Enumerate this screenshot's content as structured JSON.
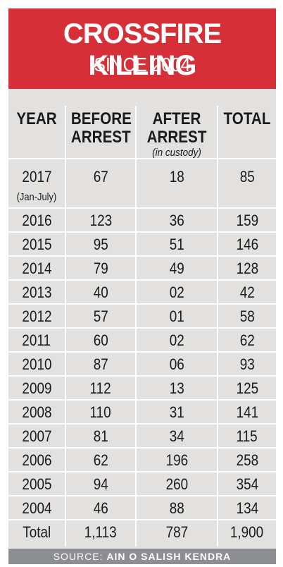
{
  "header": {
    "title": "CROSSFIRE KILLING",
    "subtitle": "SINCE 2004"
  },
  "columns": {
    "year": "YEAR",
    "before_l1": "BEFORE",
    "before_l2": "ARREST",
    "after_l1": "AFTER",
    "after_l2": "ARREST",
    "after_note": "(in custody)",
    "total": "TOTAL"
  },
  "rows": [
    {
      "year": "2017",
      "year_note": "(Jan-July)",
      "before": "67",
      "after": "18",
      "total": "85"
    },
    {
      "year": "2016",
      "before": "123",
      "after": "36",
      "total": "159"
    },
    {
      "year": "2015",
      "before": "95",
      "after": "51",
      "total": "146"
    },
    {
      "year": "2014",
      "before": "79",
      "after": "49",
      "total": "128"
    },
    {
      "year": "2013",
      "before": "40",
      "after": "02",
      "total": "42"
    },
    {
      "year": "2012",
      "before": "57",
      "after": "01",
      "total": "58"
    },
    {
      "year": "2011",
      "before": "60",
      "after": "02",
      "total": "62"
    },
    {
      "year": "2010",
      "before": "87",
      "after": "06",
      "total": "93"
    },
    {
      "year": "2009",
      "before": "112",
      "after": "13",
      "total": "125"
    },
    {
      "year": "2008",
      "before": "110",
      "after": "31",
      "total": "141"
    },
    {
      "year": "2007",
      "before": "81",
      "after": "34",
      "total": "115"
    },
    {
      "year": "2006",
      "before": "62",
      "after": "196",
      "total": "258"
    },
    {
      "year": "2005",
      "before": "94",
      "after": "260",
      "total": "354"
    },
    {
      "year": "2004",
      "before": "46",
      "after": "88",
      "total": "134"
    },
    {
      "year": "Total",
      "before": "1,113",
      "after": "787",
      "total": "1,900"
    }
  ],
  "footer": {
    "prefix": "SOURCE:",
    "source": "AIN O SALISH KENDRA"
  },
  "colors": {
    "banner": "#d72f37",
    "table_bg": "#e3e1e0",
    "footer_bg": "#8d8e91"
  },
  "chart_data": {
    "type": "table",
    "title": "CROSSFIRE KILLING",
    "subtitle": "SINCE 2004",
    "columns": [
      "YEAR",
      "BEFORE ARREST",
      "AFTER ARREST (in custody)",
      "TOTAL"
    ],
    "categories": [
      "2017 (Jan-July)",
      "2016",
      "2015",
      "2014",
      "2013",
      "2012",
      "2011",
      "2010",
      "2009",
      "2008",
      "2007",
      "2006",
      "2005",
      "2004"
    ],
    "series": [
      {
        "name": "BEFORE ARREST",
        "values": [
          67,
          123,
          95,
          79,
          40,
          57,
          60,
          87,
          112,
          110,
          81,
          62,
          94,
          46
        ]
      },
      {
        "name": "AFTER ARREST (in custody)",
        "values": [
          18,
          36,
          51,
          49,
          2,
          1,
          2,
          6,
          13,
          31,
          34,
          196,
          260,
          88
        ]
      },
      {
        "name": "TOTAL",
        "values": [
          85,
          159,
          146,
          128,
          42,
          58,
          62,
          93,
          125,
          141,
          115,
          258,
          354,
          134
        ]
      }
    ],
    "totals": {
      "BEFORE ARREST": 1113,
      "AFTER ARREST (in custody)": 787,
      "TOTAL": 1900
    }
  }
}
